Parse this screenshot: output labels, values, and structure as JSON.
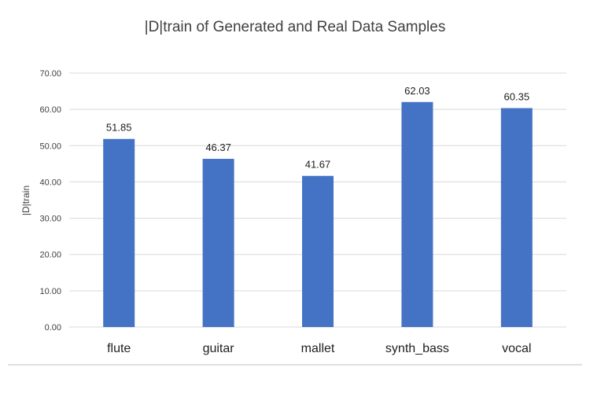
{
  "chart_data": {
    "type": "bar",
    "title": "|D|train of Generated and Real Data Samples",
    "xlabel": "",
    "ylabel": "|D|train",
    "categories": [
      "flute",
      "guitar",
      "mallet",
      "synth_bass",
      "vocal"
    ],
    "values": [
      51.85,
      46.37,
      41.67,
      62.03,
      60.35
    ],
    "data_labels": [
      "51.85",
      "46.37",
      "41.67",
      "62.03",
      "60.35"
    ],
    "ylim": [
      0,
      70
    ],
    "yticks": [
      "0.00",
      "10.00",
      "20.00",
      "30.00",
      "40.00",
      "50.00",
      "60.00",
      "70.00"
    ],
    "grid": true,
    "legend": "none",
    "colors": {
      "bar": "#4472c4"
    }
  }
}
